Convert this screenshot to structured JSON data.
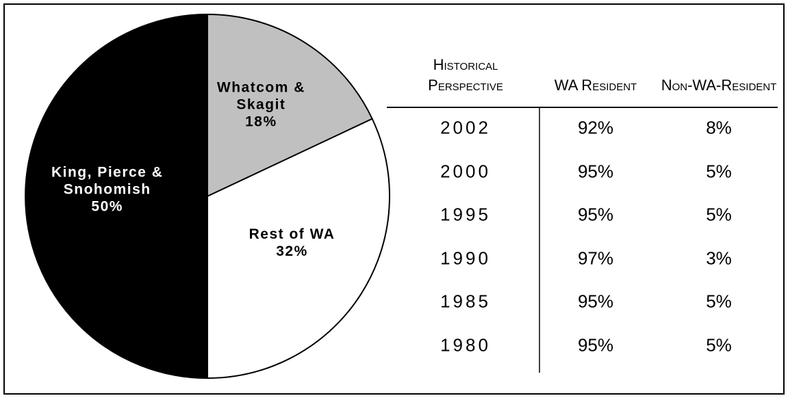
{
  "chart_data": {
    "type": "pie",
    "categories": [
      "Whatcom & Skagit",
      "Rest of WA",
      "King, Pierce & Snohomish"
    ],
    "values": [
      18,
      32,
      50
    ],
    "value_labels": [
      "18%",
      "32%",
      "50%"
    ],
    "colors": [
      "#c0c0c0",
      "#ffffff",
      "#000000"
    ]
  },
  "table": {
    "header": [
      "Historical Perspective",
      "WA Resident",
      "Non-WA-Resident"
    ],
    "rows": [
      [
        "2002",
        "92%",
        "8%"
      ],
      [
        "2000",
        "95%",
        "5%"
      ],
      [
        "1995",
        "95%",
        "5%"
      ],
      [
        "1990",
        "97%",
        "3%"
      ],
      [
        "1985",
        "95%",
        "5%"
      ],
      [
        "1980",
        "95%",
        "5%"
      ]
    ]
  }
}
